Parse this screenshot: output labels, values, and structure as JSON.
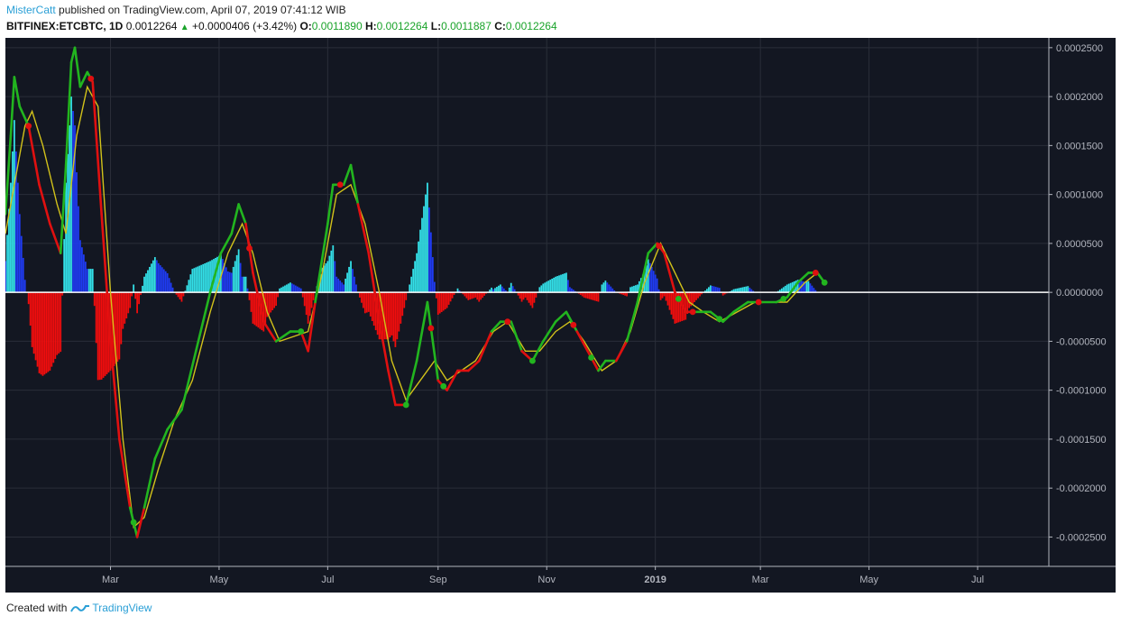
{
  "header": {
    "author": "MisterCatt",
    "published_text": "published on TradingView.com, April 07, 2019 07:41:12 WIB",
    "symbol": "BITFINEX:ETCBTC, 1D",
    "last": "0.0012264",
    "change": "+0.0000406 (+3.42%)",
    "o_label": "O:",
    "o_value": "0.0011890",
    "h_label": "H:",
    "h_value": "0.0012264",
    "l_label": "L:",
    "l_value": "0.0011887",
    "c_label": "C:",
    "c_value": "0.0012264"
  },
  "footer": {
    "created_with": "Created with",
    "brand": "TradingView"
  },
  "colors": {
    "background": "#131722",
    "grid": "#2a2e39",
    "fast_line": "#22b51f",
    "slow_line": "#d2c21a",
    "hist_pos_light": "#33e0e8",
    "hist_pos_dark": "#1f3bf2",
    "hist_neg": "#f20d0d",
    "cross_up": "#22b51f",
    "cross_down": "#e01010",
    "zero_line": "#ffffff",
    "axis_text": "#b2b5be"
  },
  "chart_data": {
    "type": "line",
    "description_series": [
      "momentum line",
      "signal line",
      "histogram"
    ],
    "x_ticks": [
      {
        "label": "Mar",
        "date": "2018-03-01"
      },
      {
        "label": "May",
        "date": "2018-05-01"
      },
      {
        "label": "Jul",
        "date": "2018-07-01"
      },
      {
        "label": "Sep",
        "date": "2018-09-01"
      },
      {
        "label": "Nov",
        "date": "2018-11-01"
      },
      {
        "label": "2019",
        "date": "2019-01-01",
        "bold": true
      },
      {
        "label": "Mar",
        "date": "2019-03-01"
      },
      {
        "label": "May",
        "date": "2019-05-01"
      },
      {
        "label": "Jul",
        "date": "2019-07-01"
      }
    ],
    "xlim": [
      "2018-01-01",
      "2019-08-10"
    ],
    "y_ticks": [
      "0.0002500",
      "0.0002000",
      "0.0001500",
      "0.0001000",
      "0.0000500",
      "0.0000000",
      "-0.0000500",
      "-0.0001000",
      "-0.0001500",
      "-0.0002000",
      "-0.0002500"
    ],
    "ylim": [
      -0.00028,
      0.00026
    ],
    "fast": [
      [
        "2018-01-01",
        8e-05
      ],
      [
        "2018-01-04",
        0.00016
      ],
      [
        "2018-01-06",
        0.00022
      ],
      [
        "2018-01-09",
        0.00019
      ],
      [
        "2018-01-14",
        0.00017
      ],
      [
        "2018-01-20",
        0.00011
      ],
      [
        "2018-01-26",
        7e-05
      ],
      [
        "2018-02-01",
        4e-05
      ],
      [
        "2018-02-04",
        0.00013
      ],
      [
        "2018-02-07",
        0.000235
      ],
      [
        "2018-02-09",
        0.00025
      ],
      [
        "2018-02-12",
        0.00021
      ],
      [
        "2018-02-16",
        0.000225
      ],
      [
        "2018-02-19",
        0.000215
      ],
      [
        "2018-02-24",
        8e-05
      ],
      [
        "2018-03-01",
        -5e-05
      ],
      [
        "2018-03-06",
        -0.00015
      ],
      [
        "2018-03-12",
        -0.00022
      ],
      [
        "2018-03-16",
        -0.00025
      ],
      [
        "2018-03-20",
        -0.00022
      ],
      [
        "2018-03-26",
        -0.00017
      ],
      [
        "2018-04-02",
        -0.00014
      ],
      [
        "2018-04-10",
        -0.00012
      ],
      [
        "2018-04-18",
        -6e-05
      ],
      [
        "2018-04-26",
        0.0
      ],
      [
        "2018-05-02",
        4e-05
      ],
      [
        "2018-05-08",
        6e-05
      ],
      [
        "2018-05-12",
        9e-05
      ],
      [
        "2018-05-16",
        7e-05
      ],
      [
        "2018-05-20",
        2e-05
      ],
      [
        "2018-05-26",
        -3e-05
      ],
      [
        "2018-06-02",
        -5e-05
      ],
      [
        "2018-06-10",
        -4e-05
      ],
      [
        "2018-06-16",
        -4e-05
      ],
      [
        "2018-06-20",
        -6e-05
      ],
      [
        "2018-06-24",
        -1e-05
      ],
      [
        "2018-07-01",
        7e-05
      ],
      [
        "2018-07-04",
        0.00011
      ],
      [
        "2018-07-10",
        0.00011
      ],
      [
        "2018-07-14",
        0.00013
      ],
      [
        "2018-07-18",
        9e-05
      ],
      [
        "2018-07-24",
        4e-05
      ],
      [
        "2018-07-30",
        -3e-05
      ],
      [
        "2018-08-04",
        -8e-05
      ],
      [
        "2018-08-08",
        -0.000115
      ],
      [
        "2018-08-14",
        -0.000115
      ],
      [
        "2018-08-20",
        -7e-05
      ],
      [
        "2018-08-26",
        -1e-05
      ],
      [
        "2018-09-01",
        -9e-05
      ],
      [
        "2018-09-06",
        -0.0001
      ],
      [
        "2018-09-12",
        -8e-05
      ],
      [
        "2018-09-18",
        -8e-05
      ],
      [
        "2018-09-24",
        -7e-05
      ],
      [
        "2018-10-01",
        -4e-05
      ],
      [
        "2018-10-06",
        -3e-05
      ],
      [
        "2018-10-12",
        -3e-05
      ],
      [
        "2018-10-18",
        -6e-05
      ],
      [
        "2018-10-24",
        -7e-05
      ],
      [
        "2018-10-30",
        -5e-05
      ],
      [
        "2018-11-06",
        -3e-05
      ],
      [
        "2018-11-12",
        -2e-05
      ],
      [
        "2018-11-18",
        -4e-05
      ],
      [
        "2018-11-24",
        -6e-05
      ],
      [
        "2018-11-30",
        -8e-05
      ],
      [
        "2018-12-04",
        -7e-05
      ],
      [
        "2018-12-10",
        -7e-05
      ],
      [
        "2018-12-16",
        -5e-05
      ],
      [
        "2018-12-22",
        -1e-05
      ],
      [
        "2018-12-28",
        4e-05
      ],
      [
        "2019-01-02",
        5e-05
      ],
      [
        "2019-01-06",
        4e-05
      ],
      [
        "2019-01-12",
        0.0
      ],
      [
        "2019-01-18",
        -2e-05
      ],
      [
        "2019-01-24",
        -2e-05
      ],
      [
        "2019-02-01",
        -2e-05
      ],
      [
        "2019-02-08",
        -3e-05
      ],
      [
        "2019-02-14",
        -2e-05
      ],
      [
        "2019-02-22",
        -1e-05
      ],
      [
        "2019-03-02",
        -1e-05
      ],
      [
        "2019-03-10",
        -1e-05
      ],
      [
        "2019-03-16",
        -5e-06
      ],
      [
        "2019-03-22",
        1e-05
      ],
      [
        "2019-03-28",
        2e-05
      ],
      [
        "2019-04-02",
        2e-05
      ],
      [
        "2019-04-06",
        1e-05
      ]
    ],
    "slow": [
      [
        "2018-01-01",
        6e-05
      ],
      [
        "2018-01-06",
        0.00011
      ],
      [
        "2018-01-12",
        0.00017
      ],
      [
        "2018-01-16",
        0.000185
      ],
      [
        "2018-01-22",
        0.00015
      ],
      [
        "2018-01-30",
        9e-05
      ],
      [
        "2018-02-04",
        6e-05
      ],
      [
        "2018-02-10",
        0.00016
      ],
      [
        "2018-02-16",
        0.00021
      ],
      [
        "2018-02-22",
        0.00019
      ],
      [
        "2018-03-01",
        0.0
      ],
      [
        "2018-03-08",
        -0.00015
      ],
      [
        "2018-03-14",
        -0.00024
      ],
      [
        "2018-03-20",
        -0.00023
      ],
      [
        "2018-03-28",
        -0.00018
      ],
      [
        "2018-04-06",
        -0.00013
      ],
      [
        "2018-04-16",
        -9e-05
      ],
      [
        "2018-04-26",
        -2e-05
      ],
      [
        "2018-05-06",
        4e-05
      ],
      [
        "2018-05-14",
        7e-05
      ],
      [
        "2018-05-20",
        4e-05
      ],
      [
        "2018-05-28",
        -2e-05
      ],
      [
        "2018-06-04",
        -5e-05
      ],
      [
        "2018-06-12",
        -4.5e-05
      ],
      [
        "2018-06-20",
        -4e-05
      ],
      [
        "2018-06-28",
        2e-05
      ],
      [
        "2018-07-06",
        0.0001
      ],
      [
        "2018-07-14",
        0.00011
      ],
      [
        "2018-07-22",
        7e-05
      ],
      [
        "2018-07-30",
        0.0
      ],
      [
        "2018-08-06",
        -7e-05
      ],
      [
        "2018-08-14",
        -0.00011
      ],
      [
        "2018-08-22",
        -9e-05
      ],
      [
        "2018-08-30",
        -7e-05
      ],
      [
        "2018-09-06",
        -9e-05
      ],
      [
        "2018-09-14",
        -8e-05
      ],
      [
        "2018-09-22",
        -7e-05
      ],
      [
        "2018-10-02",
        -4e-05
      ],
      [
        "2018-10-10",
        -3e-05
      ],
      [
        "2018-10-20",
        -6e-05
      ],
      [
        "2018-10-28",
        -6e-05
      ],
      [
        "2018-11-06",
        -4e-05
      ],
      [
        "2018-11-14",
        -3e-05
      ],
      [
        "2018-11-22",
        -5e-05
      ],
      [
        "2018-12-02",
        -8e-05
      ],
      [
        "2018-12-10",
        -7e-05
      ],
      [
        "2018-12-18",
        -4e-05
      ],
      [
        "2018-12-26",
        1e-05
      ],
      [
        "2019-01-04",
        5e-05
      ],
      [
        "2019-01-12",
        2e-05
      ],
      [
        "2019-01-20",
        -1e-05
      ],
      [
        "2019-01-28",
        -2e-05
      ],
      [
        "2019-02-06",
        -3e-05
      ],
      [
        "2019-02-16",
        -2e-05
      ],
      [
        "2019-02-26",
        -1e-05
      ],
      [
        "2019-03-08",
        -1e-05
      ],
      [
        "2019-03-16",
        -1e-05
      ],
      [
        "2019-03-26",
        1e-05
      ],
      [
        "2019-04-02",
        2e-05
      ],
      [
        "2019-04-06",
        1e-05
      ]
    ],
    "crosses_up": [
      "2018-03-14",
      "2018-06-16",
      "2018-08-14",
      "2018-09-04",
      "2018-10-24",
      "2018-11-26",
      "2019-01-14",
      "2019-02-06",
      "2019-03-14",
      "2019-04-06"
    ],
    "crosses_down": [
      "2018-01-14",
      "2018-02-18",
      "2018-05-18",
      "2018-07-08",
      "2018-08-28",
      "2018-10-10",
      "2018-11-16",
      "2019-01-03",
      "2019-01-22",
      "2019-02-28",
      "2019-04-01"
    ]
  }
}
